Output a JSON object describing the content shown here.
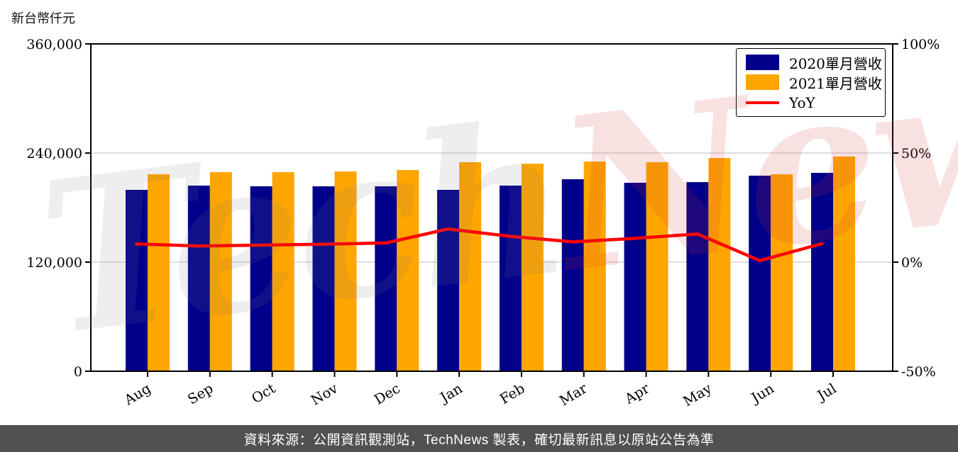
{
  "unit_label": "新台幣仟元",
  "watermark": {
    "part1": "Tech",
    "part2": "News"
  },
  "legend": {
    "items": [
      {
        "label": "2020單月營收",
        "color": "#00008B",
        "type": "bar"
      },
      {
        "label": "2021單月營收",
        "color": "#FFA500",
        "type": "bar"
      },
      {
        "label": "YoY",
        "color": "#FF0000",
        "type": "line"
      }
    ]
  },
  "footer": {
    "text": "資料來源：公開資訊觀測站，TechNews 製表，確切最新訊息以原站公告為準"
  },
  "chart_data": {
    "type": "bar",
    "title": "",
    "categories": [
      "Aug",
      "Sep",
      "Oct",
      "Nov",
      "Dec",
      "Jan",
      "Feb",
      "Mar",
      "Apr",
      "May",
      "Jun",
      "Jul"
    ],
    "series": [
      {
        "name": "2020單月營收",
        "type": "bar",
        "color": "#00008B",
        "axis": "left",
        "values": [
          199500,
          204200,
          203400,
          203400,
          203400,
          199500,
          204200,
          211200,
          207300,
          208000,
          215100,
          218200
        ]
      },
      {
        "name": "2021單月營收",
        "type": "bar",
        "color": "#FFA500",
        "axis": "left",
        "values": [
          216600,
          219000,
          219000,
          219700,
          221300,
          229900,
          228300,
          230600,
          229900,
          234500,
          216600,
          236100
        ]
      },
      {
        "name": "YoY",
        "type": "line",
        "color": "#FF0000",
        "axis": "right",
        "unit": "%",
        "values": [
          8.3,
          7.4,
          7.8,
          8.2,
          8.8,
          15.2,
          11.8,
          9.3,
          10.9,
          12.9,
          0.7,
          8.5
        ]
      }
    ],
    "left_axis": {
      "label": "新台幣仟元",
      "range": [
        0,
        360000
      ],
      "ticks": [
        0,
        120000,
        240000,
        360000
      ],
      "tick_labels": [
        "0",
        "120,000",
        "240,000",
        "360,000"
      ]
    },
    "right_axis": {
      "range": [
        -50,
        100
      ],
      "unit": "%",
      "ticks": [
        -50,
        0,
        50,
        100
      ],
      "tick_labels": [
        "-50%",
        "0%",
        "50%",
        "100%"
      ]
    },
    "grid": "horizontal",
    "grid_color": "#d4d4d4",
    "legend_position": "top-right"
  }
}
